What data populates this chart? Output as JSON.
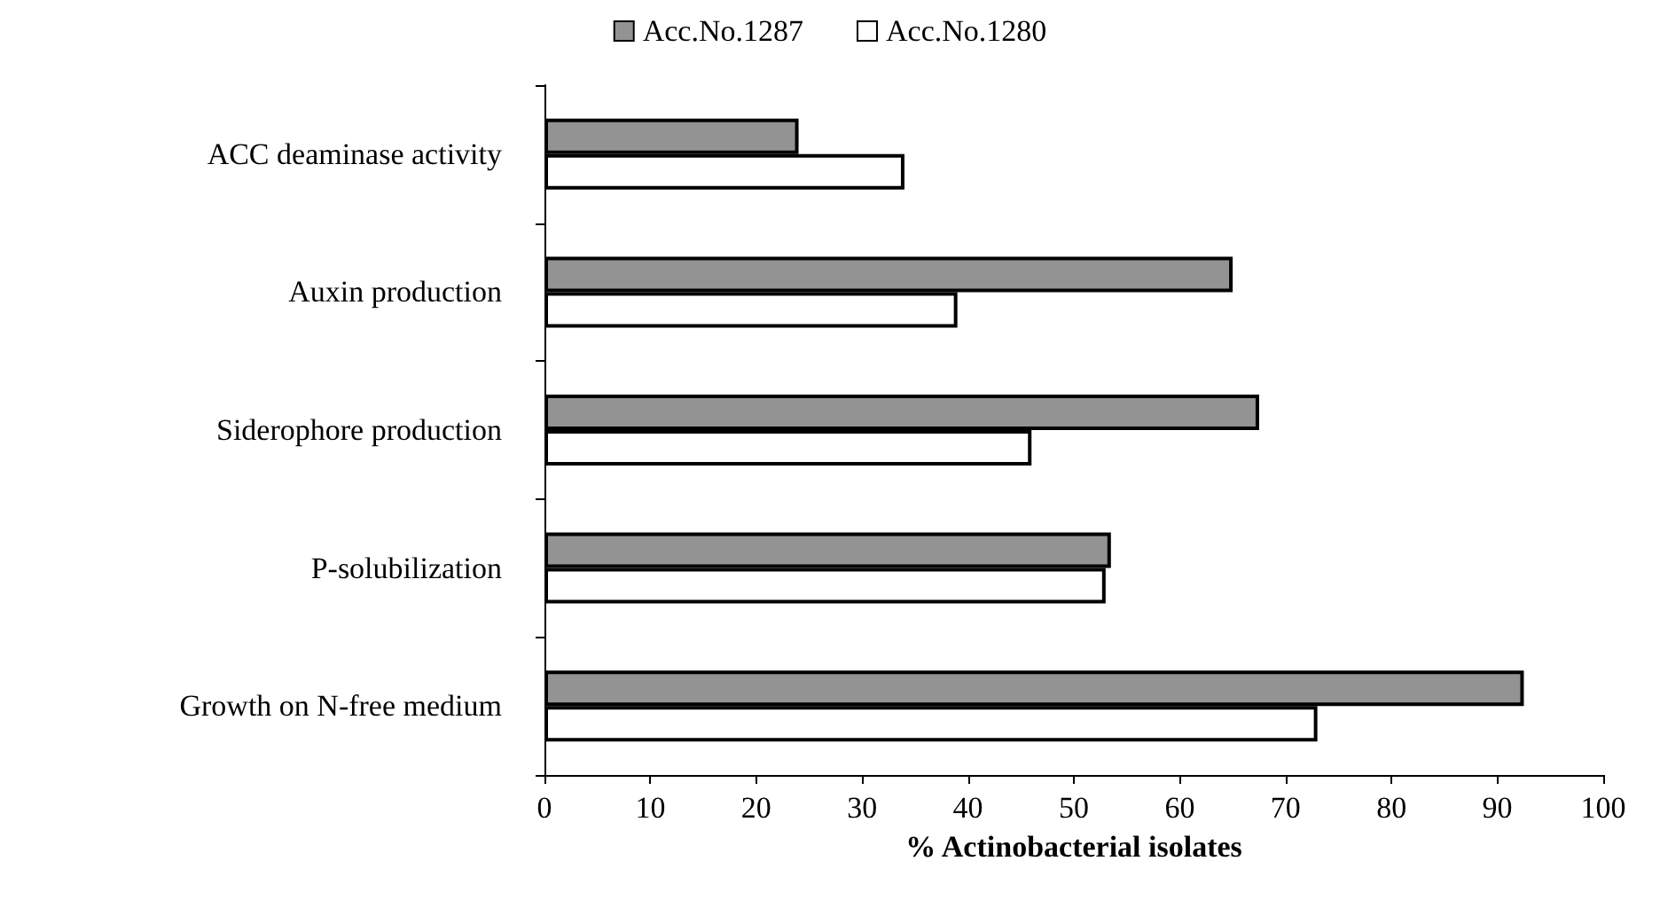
{
  "chart_data": {
    "type": "bar",
    "orientation": "horizontal",
    "categories": [
      "ACC deaminase activity",
      "Auxin production",
      "Siderophore production",
      "P-solubilization",
      "Growth on N-free medium"
    ],
    "series": [
      {
        "name": "Acc.No.1287",
        "color": "#939393",
        "values": [
          24,
          65,
          67.5,
          53.5,
          92.5
        ]
      },
      {
        "name": "Acc.No.1280",
        "color": "#ffffff",
        "values": [
          34,
          39,
          46,
          53,
          73
        ]
      }
    ],
    "xlabel": "% Actinobacterial isolates",
    "xlim": [
      0,
      100
    ],
    "xticks": [
      0,
      10,
      20,
      30,
      40,
      50,
      60,
      70,
      80,
      90,
      100
    ],
    "grid": false,
    "legend": "top"
  }
}
